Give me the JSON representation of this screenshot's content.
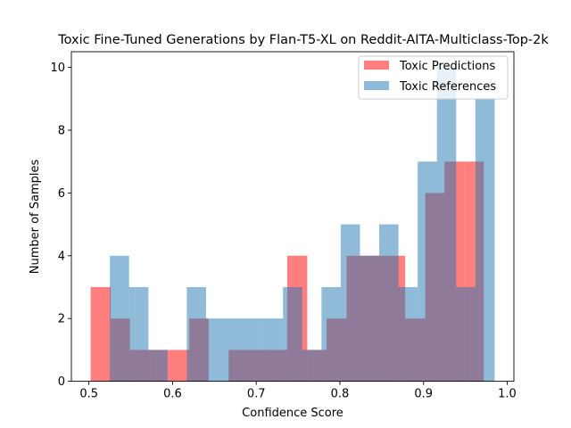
{
  "chart_data": {
    "type": "bar",
    "title": "Toxic Fine-Tuned Generations by Flan-T5-XL on Reddit-AITA-Multiclass-Top-2k",
    "xlabel": "Confidence Score",
    "ylabel": "Number of Samples",
    "xlim": [
      0.479,
      1.008
    ],
    "ylim": [
      0,
      10.5
    ],
    "xticks": [
      0.5,
      0.6,
      0.7,
      0.8,
      0.9,
      1.0
    ],
    "xtick_labels": [
      "0.5",
      "0.6",
      "0.7",
      "0.8",
      "0.9",
      "1.0"
    ],
    "yticks": [
      0,
      2,
      4,
      6,
      8,
      10
    ],
    "ytick_labels": [
      "0",
      "2",
      "4",
      "6",
      "8",
      "10"
    ],
    "legend_position": "top-right",
    "grid": false,
    "series": [
      {
        "name": "Toxic Predictions",
        "color": "#ff0000",
        "alpha": 0.5,
        "bins": [
          [
            0.502,
            0.526,
            3
          ],
          [
            0.526,
            0.549,
            2
          ],
          [
            0.549,
            0.573,
            1
          ],
          [
            0.573,
            0.596,
            1
          ],
          [
            0.596,
            0.62,
            1
          ],
          [
            0.62,
            0.643,
            2
          ],
          [
            0.643,
            0.667,
            0
          ],
          [
            0.667,
            0.69,
            1
          ],
          [
            0.69,
            0.714,
            1
          ],
          [
            0.714,
            0.737,
            1
          ],
          [
            0.737,
            0.761,
            4
          ],
          [
            0.761,
            0.784,
            1
          ],
          [
            0.784,
            0.808,
            2
          ],
          [
            0.808,
            0.831,
            4
          ],
          [
            0.831,
            0.855,
            4
          ],
          [
            0.855,
            0.878,
            4
          ],
          [
            0.878,
            0.902,
            2
          ],
          [
            0.902,
            0.925,
            6
          ],
          [
            0.925,
            0.949,
            7
          ],
          [
            0.949,
            0.972,
            7
          ],
          [
            0.972,
            0.996,
            0
          ]
        ]
      },
      {
        "name": "Toxic References",
        "color": "#1f77b4",
        "alpha": 0.5,
        "bins": [
          [
            0.525,
            0.548,
            4
          ],
          [
            0.548,
            0.571,
            3
          ],
          [
            0.571,
            0.594,
            1
          ],
          [
            0.594,
            0.617,
            0
          ],
          [
            0.617,
            0.64,
            3
          ],
          [
            0.64,
            0.663,
            2
          ],
          [
            0.663,
            0.686,
            2
          ],
          [
            0.686,
            0.709,
            2
          ],
          [
            0.709,
            0.732,
            2
          ],
          [
            0.732,
            0.755,
            3
          ],
          [
            0.755,
            0.778,
            1
          ],
          [
            0.778,
            0.801,
            3
          ],
          [
            0.801,
            0.824,
            5
          ],
          [
            0.824,
            0.847,
            4
          ],
          [
            0.847,
            0.87,
            5
          ],
          [
            0.87,
            0.893,
            3
          ],
          [
            0.893,
            0.916,
            7
          ],
          [
            0.916,
            0.939,
            10
          ],
          [
            0.939,
            0.962,
            3
          ],
          [
            0.962,
            0.985,
            9
          ]
        ]
      }
    ]
  }
}
